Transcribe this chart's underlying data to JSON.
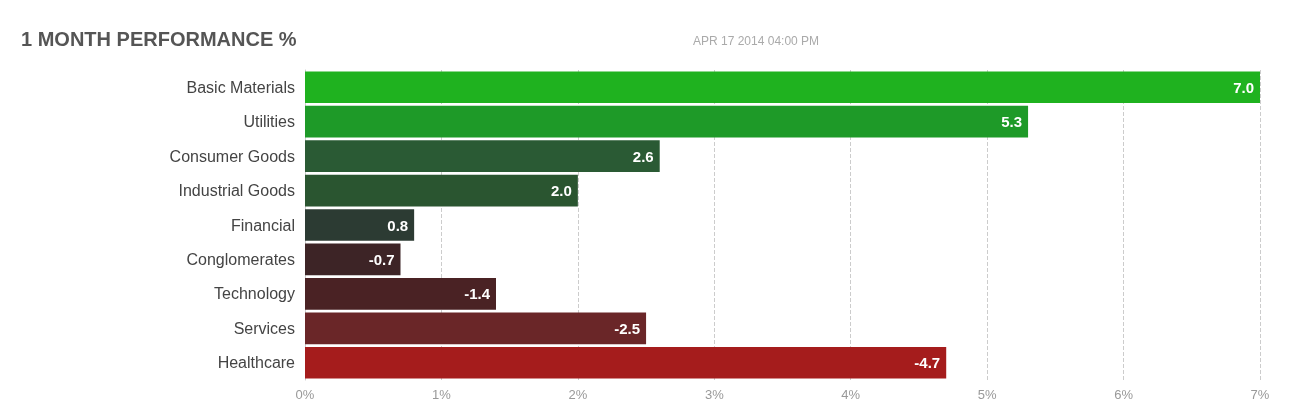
{
  "chart_data": {
    "type": "bar",
    "orientation": "horizontal",
    "title": "1 MONTH PERFORMANCE %",
    "subtitle": "APR 17 2014 04:00 PM",
    "categories": [
      "Basic Materials",
      "Utilities",
      "Consumer Goods",
      "Industrial Goods",
      "Financial",
      "Conglomerates",
      "Technology",
      "Services",
      "Healthcare"
    ],
    "values": [
      7.0,
      5.3,
      2.6,
      2.0,
      0.8,
      -0.7,
      -1.4,
      -2.5,
      -4.7
    ],
    "base": [
      0,
      0,
      0,
      0,
      0,
      0.7,
      1.4,
      2.5,
      4.7
    ],
    "value_labels": [
      "7.0",
      "5.3",
      "2.6",
      "2.0",
      "0.8",
      "-0.7",
      "-1.4",
      "-2.5",
      "-4.7"
    ],
    "colors": [
      "#1fb21f",
      "#1e9a28",
      "#2a5a34",
      "#2a5530",
      "#2c3b33",
      "#3d2426",
      "#4a2224",
      "#6a2628",
      "#a51c1c"
    ],
    "xlim": [
      0,
      7
    ],
    "xticks": [
      {
        "value": 0,
        "label": "0%"
      },
      {
        "value": 1,
        "label": "1%"
      },
      {
        "value": 2,
        "label": "2%"
      },
      {
        "value": 3,
        "label": "3%"
      },
      {
        "value": 4,
        "label": "4%"
      },
      {
        "value": 5,
        "label": "5%"
      },
      {
        "value": 6,
        "label": "6%"
      },
      {
        "value": 7,
        "label": "7%"
      }
    ],
    "grid": "x"
  }
}
